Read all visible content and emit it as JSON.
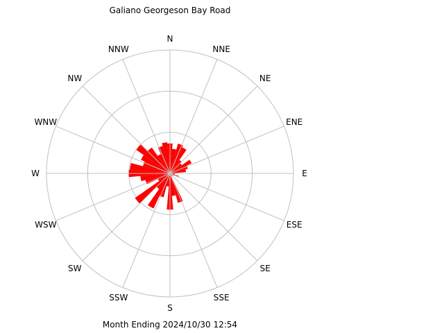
{
  "chart_data": {
    "type": "wind-rose",
    "title": "Galiano Georgeson Bay Road",
    "footer": "Month Ending 2024/10/30 12:54",
    "bar_color": "#ff0000",
    "grid_color": "#c0c0c0",
    "directions": [
      "N",
      "NNE",
      "NE",
      "ENE",
      "E",
      "ESE",
      "SE",
      "SSE",
      "S",
      "SSW",
      "SW",
      "WSW",
      "W",
      "WNW",
      "NW",
      "NNW"
    ],
    "rings": [
      1,
      2,
      3
    ],
    "bins": [
      {
        "angle": 0,
        "value": 0.73
      },
      {
        "angle": 10,
        "value": 0.6
      },
      {
        "angle": 20,
        "value": 0.75
      },
      {
        "angle": 30,
        "value": 0.7
      },
      {
        "angle": 40,
        "value": 0.4
      },
      {
        "angle": 50,
        "value": 0.35
      },
      {
        "angle": 60,
        "value": 0.58
      },
      {
        "angle": 70,
        "value": 0.45
      },
      {
        "angle": 80,
        "value": 0.39
      },
      {
        "angle": 90,
        "value": 0.1
      },
      {
        "angle": 100,
        "value": 0.12
      },
      {
        "angle": 110,
        "value": 0.22
      },
      {
        "angle": 120,
        "value": 0.1
      },
      {
        "angle": 130,
        "value": 0.06
      },
      {
        "angle": 140,
        "value": 0.05
      },
      {
        "angle": 150,
        "value": 0.08
      },
      {
        "angle": 160,
        "value": 0.74
      },
      {
        "angle": 170,
        "value": 0.55
      },
      {
        "angle": 180,
        "value": 0.88
      },
      {
        "angle": 190,
        "value": 0.32
      },
      {
        "angle": 200,
        "value": 0.6
      },
      {
        "angle": 210,
        "value": 0.94
      },
      {
        "angle": 220,
        "value": 0.46
      },
      {
        "angle": 230,
        "value": 1.04
      },
      {
        "angle": 240,
        "value": 0.32
      },
      {
        "angle": 250,
        "value": 0.62
      },
      {
        "angle": 260,
        "value": 0.72
      },
      {
        "angle": 270,
        "value": 1.0
      },
      {
        "angle": 280,
        "value": 0.98
      },
      {
        "angle": 290,
        "value": 0.68
      },
      {
        "angle": 300,
        "value": 0.78
      },
      {
        "angle": 310,
        "value": 1.0
      },
      {
        "angle": 320,
        "value": 0.77
      },
      {
        "angle": 330,
        "value": 0.52
      },
      {
        "angle": 340,
        "value": 0.69
      },
      {
        "angle": 350,
        "value": 0.76
      }
    ]
  }
}
